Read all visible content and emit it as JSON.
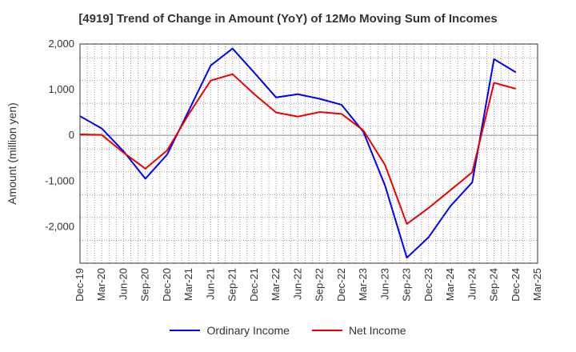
{
  "chart_data": {
    "type": "line",
    "title": "[4919]  Trend of Change in Amount (YoY) of 12Mo Moving Sum of Incomes",
    "xlabel": "",
    "ylabel": "Amount (million yen)",
    "ylim": [
      -2800,
      2000
    ],
    "yticks": [
      2000,
      1000,
      0,
      -1000,
      -2000
    ],
    "ytick_labels": [
      "2,000",
      "1,000",
      "0",
      "-1,000",
      "-2,000"
    ],
    "categories": [
      "Dec-19",
      "Mar-20",
      "Jun-20",
      "Sep-20",
      "Dec-20",
      "Mar-21",
      "Jun-21",
      "Sep-21",
      "Dec-21",
      "Mar-22",
      "Jun-22",
      "Sep-22",
      "Dec-22",
      "Mar-23",
      "Jun-23",
      "Sep-23",
      "Dec-23",
      "Mar-24",
      "Jun-24",
      "Sep-24",
      "Dec-24",
      "Mar-25"
    ],
    "grid": true,
    "legend_position": "bottom",
    "series": [
      {
        "name": "Ordinary Income",
        "color": "#0000ff",
        "values": [
          420,
          150,
          -350,
          -950,
          -420,
          550,
          1530,
          1900,
          1370,
          830,
          900,
          800,
          670,
          80,
          -1100,
          -2680,
          -2230,
          -1550,
          -1030,
          1670,
          1380,
          null
        ]
      },
      {
        "name": "Net Income",
        "color": "#ee0000",
        "values": [
          20,
          10,
          -380,
          -730,
          -330,
          470,
          1200,
          1340,
          900,
          500,
          410,
          510,
          470,
          110,
          -650,
          -1940,
          -1590,
          -1200,
          -810,
          1150,
          1020,
          null
        ]
      }
    ]
  }
}
